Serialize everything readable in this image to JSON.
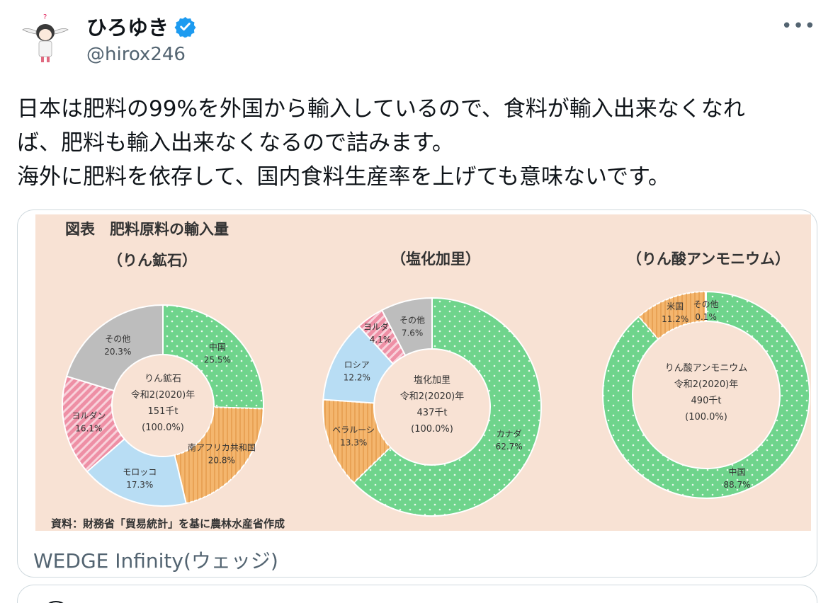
{
  "user": {
    "display_name": "ひろゆき",
    "handle": "@hirox246",
    "verified_color": "#1d9bf0"
  },
  "menu": {
    "more_label": "•••"
  },
  "tweet": {
    "lines": [
      "日本は肥料の99%を外国から輸入しているので、食料が輸入出来なくなれ",
      "ば、肥料も輸入出来なくなるので詰みます。",
      "海外に肥料を依存して、国内食料生産率を上げても意味ないです。"
    ]
  },
  "card": {
    "source": "WEDGE Infinity(ウェッジ)",
    "figure_title": "図表　肥料原料の輸入量",
    "footnote": "資料：財務省「貿易統計」を基に農林水産省作成",
    "background": "#f8e2d4"
  },
  "chart_data": [
    {
      "type": "pie",
      "title": "（りん鉱石）",
      "center": [
        "りん鉱石",
        "令和2(2020)年",
        "151千t",
        "(100.0%)"
      ],
      "slices": [
        {
          "label": "中国",
          "value": 25.5,
          "label_text": "25.5%",
          "color": "#6fd48c"
        },
        {
          "label": "南アフリカ共和国",
          "value": 20.8,
          "label_text": "20.8%",
          "color": "#f4b66e"
        },
        {
          "label": "モロッコ",
          "value": 17.3,
          "label_text": "17.3%",
          "color": "#b8ddf4"
        },
        {
          "label": "ヨルダン",
          "value": 16.1,
          "label_text": "16.1%",
          "color": "#ee8fa5"
        },
        {
          "label": "その他",
          "value": 20.3,
          "label_text": "20.3%",
          "color": "#bdbdbd"
        }
      ]
    },
    {
      "type": "pie",
      "title": "（塩化加里）",
      "center": [
        "塩化加里",
        "令和2(2020)年",
        "437千t",
        "(100.0%)"
      ],
      "slices": [
        {
          "label": "カナダ",
          "value": 62.7,
          "label_text": "62.7%",
          "color": "#6fd48c"
        },
        {
          "label": "ベラルーシ",
          "value": 13.3,
          "label_text": "13.3%",
          "color": "#f4b66e"
        },
        {
          "label": "ロシア",
          "value": 12.2,
          "label_text": "12.2%",
          "color": "#b8ddf4"
        },
        {
          "label": "ヨルダン",
          "value": 4.1,
          "label_text": "4.1%",
          "color": "#ee8fa5"
        },
        {
          "label": "その他",
          "value": 7.6,
          "label_text": "7.6%",
          "color": "#bdbdbd"
        }
      ]
    },
    {
      "type": "pie",
      "title": "（りん酸アンモニウム）",
      "center": [
        "りん酸アンモニウム",
        "令和2(2020)年",
        "490千t",
        "(100.0%)"
      ],
      "slices": [
        {
          "label": "中国",
          "value": 88.7,
          "label_text": "88.7%",
          "color": "#6fd48c"
        },
        {
          "label": "米国",
          "value": 11.2,
          "label_text": "11.2%",
          "color": "#f4b66e"
        },
        {
          "label": "その他",
          "value": 0.1,
          "label_text": "0.1%",
          "color": "#bdbdbd"
        }
      ]
    }
  ]
}
